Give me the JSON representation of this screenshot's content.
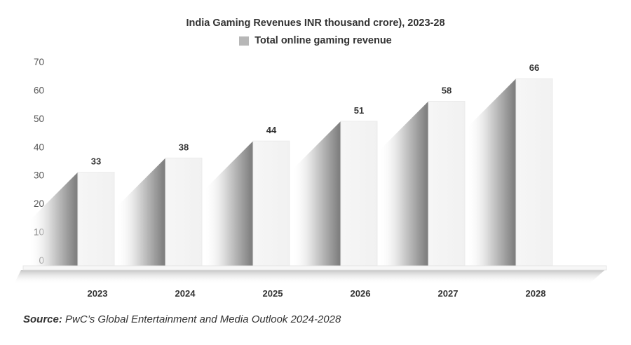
{
  "chart_data": {
    "type": "bar",
    "title": "India Gaming Revenues INR thousand crore), 2023-28",
    "legend": [
      {
        "label": "Total online gaming revenue",
        "color": "#b7b7b7"
      }
    ],
    "legend_position": "top-center",
    "categories": [
      "2023",
      "2024",
      "2025",
      "2026",
      "2027",
      "2028"
    ],
    "series": [
      {
        "name": "Total online gaming revenue",
        "values": [
          33,
          38,
          44,
          51,
          58,
          66
        ]
      }
    ],
    "xlabel": "",
    "ylabel": "",
    "ylim": [
      0,
      70
    ],
    "yticks": [
      "0",
      "10",
      "20",
      "30",
      "40",
      "50",
      "60",
      "70"
    ],
    "grid": false,
    "data_labels": [
      "33",
      "38",
      "44",
      "51",
      "58",
      "66"
    ]
  },
  "source": {
    "label": "Source:",
    "text": "PwC’s Global Entertainment and Media Outlook 2024-2028"
  }
}
